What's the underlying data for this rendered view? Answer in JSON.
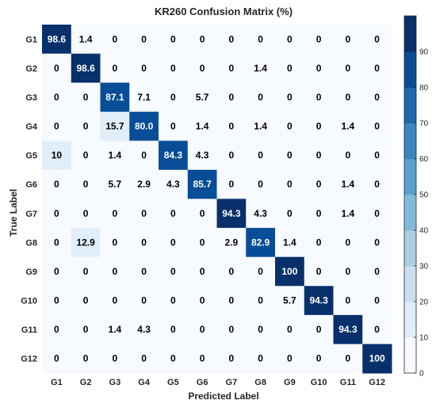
{
  "chart_data": {
    "type": "heatmap",
    "title": "KR260 Confusion Matrix (%)",
    "xlabel": "Predicted Label",
    "ylabel": "True Label",
    "x_categories": [
      "G1",
      "G2",
      "G3",
      "G4",
      "G5",
      "G6",
      "G7",
      "G8",
      "G9",
      "G10",
      "G11",
      "G12"
    ],
    "y_categories": [
      "G1",
      "G2",
      "G3",
      "G4",
      "G5",
      "G6",
      "G7",
      "G8",
      "G9",
      "G10",
      "G11",
      "G12"
    ],
    "values": [
      [
        98.6,
        1.4,
        0,
        0,
        0,
        0,
        0,
        0,
        0,
        0,
        0,
        0
      ],
      [
        0,
        98.6,
        0,
        0,
        0,
        0,
        0,
        1.4,
        0,
        0,
        0,
        0
      ],
      [
        0,
        0,
        87.1,
        7.1,
        0,
        5.7,
        0,
        0,
        0,
        0,
        0,
        0
      ],
      [
        0,
        0,
        15.7,
        80.0,
        0,
        1.4,
        0,
        1.4,
        0,
        0,
        1.4,
        0
      ],
      [
        10,
        0,
        1.4,
        0,
        84.3,
        4.3,
        0,
        0,
        0,
        0,
        0,
        0
      ],
      [
        0,
        0,
        5.7,
        2.9,
        4.3,
        85.7,
        0,
        0,
        0,
        0,
        1.4,
        0
      ],
      [
        0,
        0,
        0,
        0,
        0,
        0,
        94.3,
        4.3,
        0,
        0,
        1.4,
        0
      ],
      [
        0,
        12.9,
        0,
        0,
        0,
        0,
        2.9,
        82.9,
        1.4,
        0,
        0,
        0
      ],
      [
        0,
        0,
        0,
        0,
        0,
        0,
        0,
        0,
        100,
        0,
        0,
        0
      ],
      [
        0,
        0,
        0,
        0,
        0,
        0,
        0,
        0,
        5.7,
        94.3,
        0,
        0
      ],
      [
        0,
        0,
        1.4,
        4.3,
        0,
        0,
        0,
        0,
        0,
        0,
        94.3,
        0
      ],
      [
        0,
        0,
        0,
        0,
        0,
        0,
        0,
        0,
        0,
        0,
        0,
        100
      ]
    ],
    "value_labels": [
      [
        "98.6",
        "1.4",
        "0",
        "0",
        "0",
        "0",
        "0",
        "0",
        "0",
        "0",
        "0",
        "0"
      ],
      [
        "0",
        "98.6",
        "0",
        "0",
        "0",
        "0",
        "0",
        "1.4",
        "0",
        "0",
        "0",
        "0"
      ],
      [
        "0",
        "0",
        "87.1",
        "7.1",
        "0",
        "5.7",
        "0",
        "0",
        "0",
        "0",
        "0",
        "0"
      ],
      [
        "0",
        "0",
        "15.7",
        "80.0",
        "0",
        "1.4",
        "0",
        "1.4",
        "0",
        "0",
        "1.4",
        "0"
      ],
      [
        "10",
        "0",
        "1.4",
        "0",
        "84.3",
        "4.3",
        "0",
        "0",
        "0",
        "0",
        "0",
        "0"
      ],
      [
        "0",
        "0",
        "5.7",
        "2.9",
        "4.3",
        "85.7",
        "0",
        "0",
        "0",
        "0",
        "1.4",
        "0"
      ],
      [
        "0",
        "0",
        "0",
        "0",
        "0",
        "0",
        "94.3",
        "4.3",
        "0",
        "0",
        "1.4",
        "0"
      ],
      [
        "0",
        "12.9",
        "0",
        "0",
        "0",
        "0",
        "2.9",
        "82.9",
        "1.4",
        "0",
        "0",
        "0"
      ],
      [
        "0",
        "0",
        "0",
        "0",
        "0",
        "0",
        "0",
        "0",
        "100",
        "0",
        "0",
        "0"
      ],
      [
        "0",
        "0",
        "0",
        "0",
        "0",
        "0",
        "0",
        "0",
        "5.7",
        "94.3",
        "0",
        "0"
      ],
      [
        "0",
        "0",
        "1.4",
        "4.3",
        "0",
        "0",
        "0",
        "0",
        "0",
        "0",
        "94.3",
        "0"
      ],
      [
        "0",
        "0",
        "0",
        "0",
        "0",
        "0",
        "0",
        "0",
        "0",
        "0",
        "0",
        "100"
      ]
    ],
    "colorbar": {
      "range": [
        0,
        100
      ],
      "ticks": [
        "0",
        "10",
        "20",
        "30",
        "40",
        "50",
        "60",
        "70",
        "80",
        "90"
      ],
      "levels": 10
    },
    "colormap": [
      "#f7fbff",
      "#deebf7",
      "#c6dbef",
      "#9ecae1",
      "#6baed6",
      "#4292c6",
      "#2171b5",
      "#08519c",
      "#08306b"
    ],
    "grid": false,
    "legend": "colorbar-right"
  }
}
